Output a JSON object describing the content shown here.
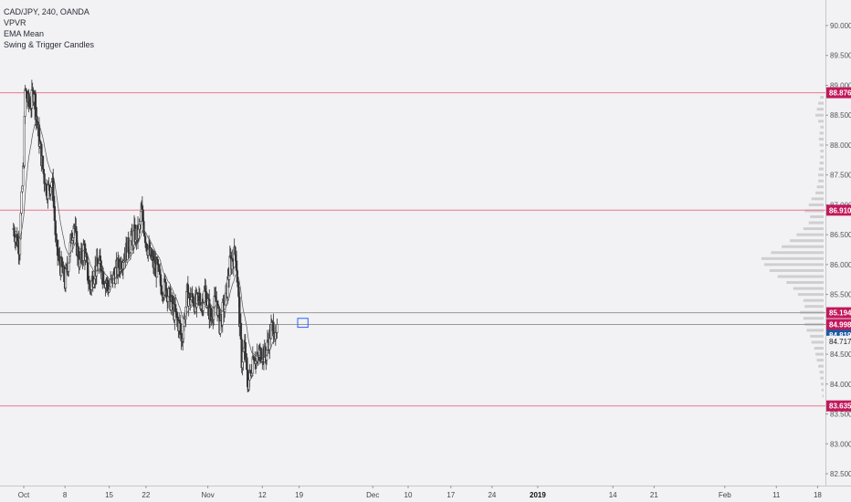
{
  "chart_data": {
    "type": "candlestick",
    "title": "CAD/JPY, 240, OANDA",
    "indicators": [
      "VPVR",
      "EMA Mean",
      "Swing & Trigger Candles"
    ],
    "y_axis": {
      "side": "right",
      "ylim": [
        82.3,
        90.3
      ],
      "ticks": [
        "82.500",
        "83.000",
        "83.500",
        "84.000",
        "84.500",
        "85.000",
        "85.500",
        "86.000",
        "86.500",
        "87.000",
        "87.500",
        "88.000",
        "88.500",
        "89.000",
        "89.500",
        "90.000"
      ],
      "tick_values": [
        82.5,
        83.0,
        83.5,
        84.0,
        84.5,
        85.0,
        85.5,
        86.0,
        86.5,
        87.0,
        87.5,
        88.0,
        88.5,
        89.0,
        89.5,
        90.0
      ]
    },
    "x_axis": {
      "ticks": [
        {
          "label": "Oct",
          "pos": 0,
          "strong": false
        },
        {
          "label": "8",
          "pos": 28,
          "strong": false
        },
        {
          "label": "15",
          "pos": 58,
          "strong": false
        },
        {
          "label": "22",
          "pos": 83,
          "strong": false
        },
        {
          "label": "Nov",
          "pos": 125,
          "strong": false
        },
        {
          "label": "12",
          "pos": 162,
          "strong": false
        },
        {
          "label": "19",
          "pos": 187,
          "strong": false
        },
        {
          "label": "Dec",
          "pos": 237,
          "strong": false
        },
        {
          "label": "10",
          "pos": 261,
          "strong": false
        },
        {
          "label": "17",
          "pos": 290,
          "strong": false
        },
        {
          "label": "24",
          "pos": 318,
          "strong": false
        },
        {
          "label": "2019",
          "pos": 349,
          "strong": true
        },
        {
          "label": "14",
          "pos": 400,
          "strong": false
        },
        {
          "label": "21",
          "pos": 428,
          "strong": false
        },
        {
          "label": "Feb",
          "pos": 476,
          "strong": false
        },
        {
          "label": "11",
          "pos": 511,
          "strong": false
        },
        {
          "label": "18",
          "pos": 539,
          "strong": false
        }
      ],
      "range": [
        -7,
        545
      ]
    },
    "horizontal_levels": [
      {
        "label": "88.876",
        "value": 88.876,
        "color": "#c2185b",
        "line": "#e57b8e"
      },
      {
        "label": "86.910",
        "value": 86.91,
        "color": "#c2185b",
        "line": "#e57b8e"
      },
      {
        "label": "85.194",
        "value": 85.194,
        "color": "#c2185b",
        "line": "#999999"
      },
      {
        "label": "84.998",
        "value": 84.998,
        "color": "#c2185b",
        "line": "#999999"
      },
      {
        "label": "83.635",
        "value": 83.635,
        "color": "#c2185b",
        "line": "#e57b8e"
      }
    ],
    "current_price": {
      "label": "84.819",
      "value": 84.819,
      "color": "#1e5aa0"
    },
    "ema_label": {
      "label": "84.717",
      "value": 84.717
    },
    "anchor_closes": [
      [
        -7,
        86.6
      ],
      [
        -3,
        86.3
      ],
      [
        0,
        87.8
      ],
      [
        1,
        88.9
      ],
      [
        3,
        88.7
      ],
      [
        5,
        88.7
      ],
      [
        7,
        88.95
      ],
      [
        8,
        88.6
      ],
      [
        10,
        88.2
      ],
      [
        13,
        87.6
      ],
      [
        15,
        87.3
      ],
      [
        17,
        87.25
      ],
      [
        19,
        87.4
      ],
      [
        20,
        87.2
      ],
      [
        22,
        86.3
      ],
      [
        24,
        86.05
      ],
      [
        26,
        85.9
      ],
      [
        28,
        85.7
      ],
      [
        31,
        86.2
      ],
      [
        34,
        86.7
      ],
      [
        36,
        86.3
      ],
      [
        38,
        86.0
      ],
      [
        41,
        86.3
      ],
      [
        43,
        85.9
      ],
      [
        45,
        85.6
      ],
      [
        48,
        85.9
      ],
      [
        52,
        86.0
      ],
      [
        55,
        85.75
      ],
      [
        58,
        85.6
      ],
      [
        61,
        85.8
      ],
      [
        65,
        86.0
      ],
      [
        68,
        86.15
      ],
      [
        72,
        86.35
      ],
      [
        75,
        86.5
      ],
      [
        78,
        86.5
      ],
      [
        80,
        86.9
      ],
      [
        83,
        86.4
      ],
      [
        85,
        86.2
      ],
      [
        88,
        86.0
      ],
      [
        91,
        85.9
      ],
      [
        93,
        85.65
      ],
      [
        97,
        85.6
      ],
      [
        100,
        85.35
      ],
      [
        103,
        85.15
      ],
      [
        106,
        84.95
      ],
      [
        107,
        84.7
      ],
      [
        109,
        85.1
      ],
      [
        111,
        85.5
      ],
      [
        113,
        85.4
      ],
      [
        115,
        85.45
      ],
      [
        117,
        85.3
      ],
      [
        119,
        85.45
      ],
      [
        121,
        85.35
      ],
      [
        123,
        85.55
      ],
      [
        125,
        85.35
      ],
      [
        127,
        85.1
      ],
      [
        129,
        85.3
      ],
      [
        131,
        85.4
      ],
      [
        133,
        85.0
      ],
      [
        137,
        85.4
      ],
      [
        140,
        86.0
      ],
      [
        142,
        86.1
      ],
      [
        144,
        86.2
      ],
      [
        146,
        85.35
      ],
      [
        147,
        84.85
      ],
      [
        148,
        84.4
      ],
      [
        150,
        84.6
      ],
      [
        152,
        84.0
      ],
      [
        154,
        84.15
      ],
      [
        156,
        84.55
      ],
      [
        158,
        84.35
      ],
      [
        160,
        84.5
      ],
      [
        162,
        84.55
      ],
      [
        164,
        84.45
      ],
      [
        166,
        84.7
      ],
      [
        168,
        84.9
      ],
      [
        170,
        85.0
      ],
      [
        171,
        84.7
      ],
      [
        172,
        84.85
      ]
    ],
    "pre_history": [
      [
        -7,
        86.6
      ],
      [
        -3,
        86.3
      ],
      [
        0,
        87.8
      ],
      [
        1,
        88.9
      ],
      [
        3,
        88.7
      ],
      [
        5,
        88.7
      ],
      [
        7,
        88.95
      ],
      [
        8,
        88.6
      ],
      [
        10,
        88.2
      ],
      [
        13,
        87.6
      ],
      [
        15,
        87.3
      ],
      [
        17,
        87.25
      ],
      [
        19,
        87.4
      ],
      [
        20,
        87.2
      ],
      [
        22,
        86.3
      ],
      [
        24,
        86.05
      ],
      [
        26,
        85.9
      ],
      [
        28,
        85.7
      ],
      [
        31,
        86.2
      ],
      [
        34,
        86.7
      ],
      [
        36,
        86.3
      ],
      [
        38,
        86.0
      ],
      [
        41,
        86.3
      ],
      [
        43,
        85.9
      ],
      [
        45,
        85.6
      ],
      [
        48,
        85.9
      ],
      [
        52,
        86.0
      ],
      [
        55,
        85.75
      ],
      [
        58,
        85.6
      ],
      [
        61,
        85.8
      ],
      [
        65,
        86.0
      ],
      [
        68,
        86.15
      ],
      [
        72,
        86.35
      ],
      [
        75,
        86.5
      ],
      [
        78,
        86.5
      ],
      [
        80,
        86.9
      ],
      [
        83,
        86.4
      ],
      [
        85,
        86.2
      ],
      [
        88,
        86.0
      ],
      [
        91,
        85.9
      ],
      [
        93,
        85.65
      ],
      [
        97,
        85.6
      ],
      [
        100,
        85.35
      ],
      [
        103,
        85.15
      ],
      [
        106,
        84.95
      ],
      [
        107,
        84.7
      ],
      [
        109,
        85.1
      ],
      [
        111,
        85.5
      ],
      [
        113,
        85.4
      ],
      [
        115,
        85.45
      ],
      [
        117,
        85.3
      ],
      [
        119,
        85.45
      ],
      [
        121,
        85.35
      ],
      [
        123,
        85.55
      ],
      [
        125,
        85.35
      ],
      [
        127,
        85.1
      ],
      [
        129,
        85.3
      ],
      [
        131,
        85.4
      ],
      [
        133,
        85.0
      ],
      [
        137,
        85.4
      ],
      [
        140,
        86.0
      ],
      [
        142,
        86.1
      ],
      [
        144,
        86.2
      ],
      [
        146,
        85.35
      ],
      [
        147,
        84.85
      ],
      [
        148,
        84.4
      ],
      [
        150,
        84.6
      ],
      [
        152,
        84.0
      ],
      [
        154,
        84.15
      ],
      [
        156,
        84.55
      ],
      [
        158,
        84.35
      ],
      [
        160,
        84.5
      ],
      [
        162,
        84.55
      ],
      [
        164,
        84.45
      ],
      [
        166,
        84.7
      ],
      [
        168,
        84.9
      ],
      [
        170,
        85.0
      ],
      [
        171,
        84.7
      ],
      [
        172,
        84.85
      ]
    ],
    "volume_profile": {
      "bins": [
        [
          88.8,
          0.05
        ],
        [
          88.7,
          0.08
        ],
        [
          88.6,
          0.1
        ],
        [
          88.5,
          0.12
        ],
        [
          88.4,
          0.08
        ],
        [
          88.3,
          0.05
        ],
        [
          88.2,
          0.06
        ],
        [
          88.1,
          0.07
        ],
        [
          88.0,
          0.06
        ],
        [
          87.9,
          0.05
        ],
        [
          87.8,
          0.05
        ],
        [
          87.7,
          0.06
        ],
        [
          87.6,
          0.07
        ],
        [
          87.5,
          0.08
        ],
        [
          87.4,
          0.08
        ],
        [
          87.3,
          0.1
        ],
        [
          87.2,
          0.12
        ],
        [
          87.1,
          0.18
        ],
        [
          87.0,
          0.22
        ],
        [
          86.9,
          0.28
        ],
        [
          86.8,
          0.2
        ],
        [
          86.7,
          0.22
        ],
        [
          86.6,
          0.3
        ],
        [
          86.5,
          0.4
        ],
        [
          86.4,
          0.5
        ],
        [
          86.3,
          0.62
        ],
        [
          86.2,
          0.78
        ],
        [
          86.1,
          0.92
        ],
        [
          86.0,
          0.88
        ],
        [
          85.9,
          0.8
        ],
        [
          85.8,
          0.68
        ],
        [
          85.7,
          0.55
        ],
        [
          85.6,
          0.45
        ],
        [
          85.5,
          0.38
        ],
        [
          85.4,
          0.3
        ],
        [
          85.3,
          0.28
        ],
        [
          85.2,
          0.35
        ],
        [
          85.1,
          0.3
        ],
        [
          85.0,
          0.28
        ],
        [
          84.9,
          0.25
        ],
        [
          84.8,
          0.2
        ],
        [
          84.7,
          0.18
        ],
        [
          84.6,
          0.14
        ],
        [
          84.5,
          0.12
        ],
        [
          84.4,
          0.1
        ],
        [
          84.3,
          0.08
        ],
        [
          84.2,
          0.06
        ],
        [
          84.1,
          0.05
        ],
        [
          84.0,
          0.04
        ],
        [
          83.9,
          0.03
        ],
        [
          83.8,
          0.02
        ]
      ]
    },
    "forecast_box": {
      "x0": 186,
      "x1": 193,
      "y0": 84.95,
      "y1": 85.1
    }
  }
}
